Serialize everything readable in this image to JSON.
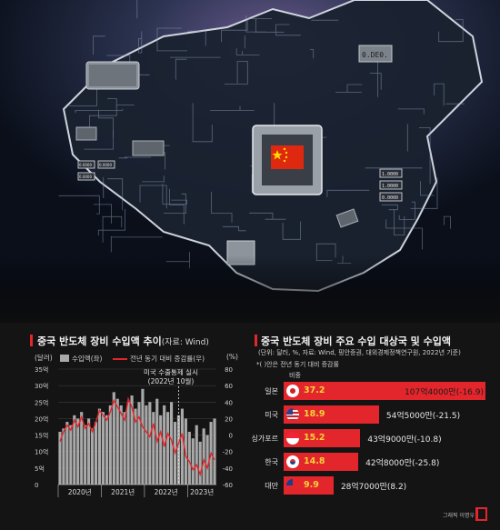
{
  "hero": {
    "chips": [
      "0.DE0.",
      "1.0000",
      "1.0000",
      "0.0000",
      "0.0000",
      "0.0000",
      "0.0000"
    ],
    "flag_colors": {
      "red": "#de2910",
      "gold": "#ffde00"
    }
  },
  "colors": {
    "accent": "#e3262b",
    "bar": "#a9a9a9",
    "share": "#f3d23b",
    "background": "#141414"
  },
  "chart_data": [
    {
      "type": "bar",
      "title": "중국 반도체 장비 수입액 추이",
      "source": "(자료: Wind)",
      "y_left_unit": "(달러)",
      "y_right_unit": "(%)",
      "legend": [
        {
          "name": "수입액(좌)",
          "kind": "bar"
        },
        {
          "name": "전년 동기 대비 증감률(우)",
          "kind": "line"
        }
      ],
      "annotation": "미국 수출통제 실시\n(2022년 10월)",
      "left_ticks": [
        "35억",
        "30억",
        "25억",
        "20억",
        "15억",
        "10억",
        "5억",
        "0"
      ],
      "left_tick_values": [
        35,
        30,
        25,
        20,
        15,
        10,
        5,
        0
      ],
      "right_ticks": [
        "80",
        "60",
        "40",
        "20",
        "0",
        "-20",
        "-40",
        "-60"
      ],
      "right_tick_values": [
        80,
        60,
        40,
        20,
        0,
        -20,
        -40,
        -60
      ],
      "x_labels": [
        "2020년",
        "2021년",
        "2022년",
        "2023년"
      ],
      "ylim_left": [
        0,
        35
      ],
      "ylim_right": [
        -60,
        80
      ],
      "series": [
        {
          "name": "수입액(좌)",
          "values": [
            16,
            17,
            19,
            18,
            21,
            20,
            22,
            18,
            20,
            17,
            19,
            23,
            22,
            21,
            24,
            28,
            26,
            24,
            22,
            25,
            27,
            23,
            25,
            29,
            24,
            25,
            22,
            26,
            21,
            24,
            22,
            25,
            19,
            21,
            23,
            20,
            16,
            14,
            18,
            13,
            17,
            15,
            19,
            20
          ]
        },
        {
          "name": "전년 동기 대비 증감률(우)",
          "values": [
            -8,
            4,
            12,
            6,
            18,
            10,
            22,
            8,
            14,
            4,
            16,
            30,
            24,
            18,
            28,
            42,
            34,
            26,
            18,
            44,
            34,
            16,
            22,
            10,
            4,
            -2,
            14,
            -8,
            4,
            -14,
            2,
            -6,
            -22,
            -10,
            2,
            -26,
            -32,
            -42,
            -36,
            -48,
            -30,
            -40,
            -22,
            -30
          ]
        }
      ]
    },
    {
      "type": "bar",
      "title": "중국 반도체 장비 주요 수입 대상국 및 수입액",
      "subtitle": "(단위: 달러, %, 자료: Wind, 핑안증권, 대외경제정책연구원, 2022년 기준)",
      "note": "*(  )안은 전년 동기 대비 증감률",
      "share_header": "비중",
      "categories": [
        "일본",
        "미국",
        "싱가포르",
        "한국",
        "대만"
      ],
      "share": [
        37.2,
        18.9,
        15.2,
        14.8,
        9.9
      ],
      "share_labels": [
        "37.2",
        "18.9",
        "15.2",
        "14.8",
        "9.9"
      ],
      "amounts": [
        "107억4000만(-16.9)",
        "54억5000만(-21.5)",
        "43억9000만(-10.8)",
        "42억8000만(-25.8)",
        "28억7000만(8.2)"
      ],
      "xlim": [
        0,
        40
      ]
    }
  ],
  "credit": "그래픽 이명우"
}
